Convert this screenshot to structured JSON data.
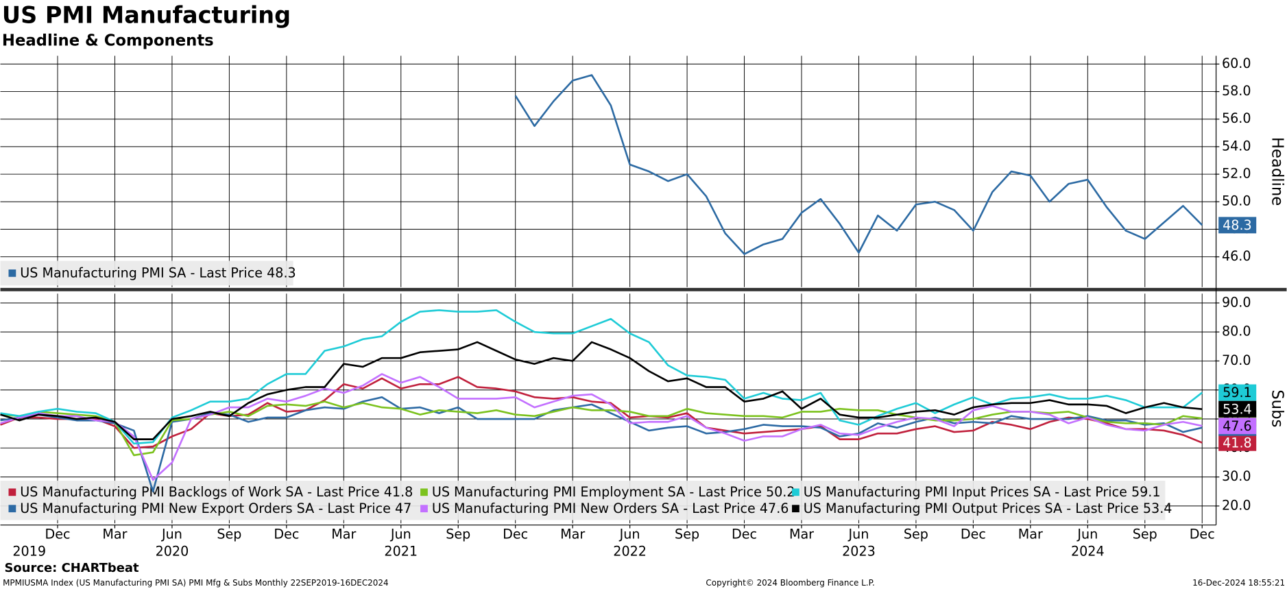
{
  "chart_data": [
    {
      "type": "line",
      "title": "US PMI Manufacturing",
      "subtitle": "Headline & Components",
      "y_label": "Headline",
      "legend_suffix": "- Last Price",
      "x": [
        "2019-09",
        "2019-10",
        "2019-11",
        "2019-12",
        "2020-01",
        "2020-02",
        "2020-03",
        "2020-04",
        "2020-05",
        "2020-06",
        "2020-07",
        "2020-08",
        "2020-09",
        "2020-10",
        "2020-11",
        "2020-12",
        "2021-01",
        "2021-02",
        "2021-03",
        "2021-04",
        "2021-05",
        "2021-06",
        "2021-07",
        "2021-08",
        "2021-09",
        "2021-10",
        "2021-11",
        "2021-12",
        "2022-01",
        "2022-02",
        "2022-03",
        "2022-04",
        "2022-05",
        "2022-06",
        "2022-07",
        "2022-08",
        "2022-09",
        "2022-10",
        "2022-11",
        "2022-12",
        "2023-01",
        "2023-02",
        "2023-03",
        "2023-04",
        "2023-05",
        "2023-06",
        "2023-07",
        "2023-08",
        "2023-09",
        "2023-10",
        "2023-11",
        "2023-12",
        "2024-01",
        "2024-02",
        "2024-03",
        "2024-04",
        "2024-05",
        "2024-06",
        "2024-07",
        "2024-08",
        "2024-09",
        "2024-10",
        "2024-11",
        "2024-12"
      ],
      "ylim": [
        43.8,
        60.6
      ],
      "yticks": [
        {
          "value": 46,
          "label": "46.0"
        },
        {
          "value": 48,
          "label": "48.0"
        },
        {
          "value": 50,
          "label": "50.0"
        },
        {
          "value": 52,
          "label": "52.0"
        },
        {
          "value": 54,
          "label": "54.0"
        },
        {
          "value": 56,
          "label": "56.0"
        },
        {
          "value": 58,
          "label": "58.0"
        },
        {
          "value": 60,
          "label": "60.0"
        }
      ],
      "grid": true,
      "series": [
        {
          "name": "US Manufacturing PMI SA",
          "color": "#2c6aa3",
          "values": [
            null,
            null,
            null,
            null,
            null,
            null,
            null,
            null,
            null,
            null,
            null,
            null,
            null,
            null,
            null,
            null,
            null,
            null,
            null,
            null,
            null,
            null,
            null,
            null,
            null,
            null,
            null,
            57.7,
            55.5,
            57.3,
            58.8,
            59.2,
            57.0,
            52.7,
            52.2,
            51.5,
            52.0,
            50.4,
            47.7,
            46.2,
            46.9,
            47.3,
            49.2,
            50.2,
            48.4,
            46.3,
            49.0,
            47.9,
            49.8,
            50.0,
            49.4,
            47.9,
            50.7,
            52.2,
            51.9,
            50.0,
            51.3,
            51.6,
            49.6,
            47.9,
            47.3,
            48.5,
            49.7,
            48.3
          ]
        }
      ]
    },
    {
      "type": "line",
      "y_label": "Subs",
      "legend_suffix": "- Last Price",
      "x": [
        "2019-09",
        "2019-10",
        "2019-11",
        "2019-12",
        "2020-01",
        "2020-02",
        "2020-03",
        "2020-04",
        "2020-05",
        "2020-06",
        "2020-07",
        "2020-08",
        "2020-09",
        "2020-10",
        "2020-11",
        "2020-12",
        "2021-01",
        "2021-02",
        "2021-03",
        "2021-04",
        "2021-05",
        "2021-06",
        "2021-07",
        "2021-08",
        "2021-09",
        "2021-10",
        "2021-11",
        "2021-12",
        "2022-01",
        "2022-02",
        "2022-03",
        "2022-04",
        "2022-05",
        "2022-06",
        "2022-07",
        "2022-08",
        "2022-09",
        "2022-10",
        "2022-11",
        "2022-12",
        "2023-01",
        "2023-02",
        "2023-03",
        "2023-04",
        "2023-05",
        "2023-06",
        "2023-07",
        "2023-08",
        "2023-09",
        "2023-10",
        "2023-11",
        "2023-12",
        "2024-01",
        "2024-02",
        "2024-03",
        "2024-04",
        "2024-05",
        "2024-06",
        "2024-07",
        "2024-08",
        "2024-09",
        "2024-10",
        "2024-11",
        "2024-12"
      ],
      "ylim": [
        14,
        93.2
      ],
      "yticks": [
        {
          "value": 20,
          "label": "20.0"
        },
        {
          "value": 30,
          "label": "30.0"
        },
        {
          "value": 40,
          "label": "40.0"
        },
        {
          "value": 50,
          "label": "50.0"
        },
        {
          "value": 60,
          "label": "60.0"
        },
        {
          "value": 70,
          "label": "70.0"
        },
        {
          "value": 80,
          "label": "80.0"
        },
        {
          "value": 90,
          "label": "90.0"
        }
      ],
      "grid": true,
      "xticks": [
        {
          "value": "2019-12",
          "label": "Dec"
        },
        {
          "value": "2020-03",
          "label": "Mar"
        },
        {
          "value": "2020-06",
          "label": "Jun"
        },
        {
          "value": "2020-09",
          "label": "Sep"
        },
        {
          "value": "2020-12",
          "label": "Dec"
        },
        {
          "value": "2021-03",
          "label": "Mar"
        },
        {
          "value": "2021-06",
          "label": "Jun"
        },
        {
          "value": "2021-09",
          "label": "Sep"
        },
        {
          "value": "2021-12",
          "label": "Dec"
        },
        {
          "value": "2022-03",
          "label": "Mar"
        },
        {
          "value": "2022-06",
          "label": "Jun"
        },
        {
          "value": "2022-09",
          "label": "Sep"
        },
        {
          "value": "2022-12",
          "label": "Dec"
        },
        {
          "value": "2023-03",
          "label": "Mar"
        },
        {
          "value": "2023-06",
          "label": "Jun"
        },
        {
          "value": "2023-09",
          "label": "Sep"
        },
        {
          "value": "2023-12",
          "label": "Dec"
        },
        {
          "value": "2024-03",
          "label": "Mar"
        },
        {
          "value": "2024-06",
          "label": "Jun"
        },
        {
          "value": "2024-09",
          "label": "Sep"
        },
        {
          "value": "2024-12",
          "label": "Dec"
        }
      ],
      "year_labels": [
        {
          "value": "2019-10",
          "label": "2019"
        },
        {
          "value": "2020-06",
          "label": "2020"
        },
        {
          "value": "2021-06",
          "label": "2021"
        },
        {
          "value": "2022-06",
          "label": "2022"
        },
        {
          "value": "2023-06",
          "label": "2023"
        },
        {
          "value": "2024-06",
          "label": "2024"
        }
      ],
      "series": [
        {
          "name": "US Manufacturing PMI Backlogs of Work SA",
          "color": "#c0203c",
          "values": [
            48,
            50.5,
            50.5,
            50,
            50,
            50,
            47.5,
            40,
            40.5,
            44,
            46.5,
            52,
            51,
            51.5,
            55.5,
            52.5,
            53,
            56.5,
            62,
            60.5,
            64,
            60.5,
            62,
            62,
            64.5,
            61,
            60.5,
            59.5,
            57.5,
            57,
            57.5,
            56,
            55.5,
            50.5,
            51,
            50.5,
            52,
            47,
            46,
            45,
            45.5,
            46,
            46.5,
            47.5,
            43,
            43,
            45,
            45,
            46.5,
            47.5,
            45.5,
            46,
            49,
            48,
            46.5,
            49,
            50.5,
            50,
            48.5,
            46.5,
            46.5,
            46,
            44.5,
            41.8
          ]
        },
        {
          "name": "US Manufacturing PMI New Export Orders SA",
          "color": "#2d6aa4",
          "values": [
            49.5,
            50.5,
            51.5,
            50.5,
            49.5,
            49.5,
            48.5,
            46,
            25,
            49,
            50,
            52,
            51.5,
            49,
            50.5,
            50.5,
            53,
            54,
            53.5,
            56,
            57.5,
            53.5,
            54,
            52,
            54,
            50,
            50,
            50,
            50,
            53,
            54,
            55,
            52,
            49,
            46,
            47,
            47.5,
            45,
            45.5,
            46.5,
            48,
            47.5,
            47.5,
            47,
            44,
            45,
            48.5,
            47,
            49,
            50.5,
            48.5,
            49,
            48.5,
            51,
            50,
            50,
            50,
            51,
            49.5,
            49.5,
            48,
            48.5,
            45.5,
            47.0
          ]
        },
        {
          "name": "US Manufacturing PMI Employment SA",
          "color": "#7cc21e",
          "values": [
            51.5,
            51,
            52.5,
            52,
            51.5,
            51,
            49,
            37.5,
            38.5,
            49.5,
            50,
            51.5,
            52.5,
            51,
            54.5,
            55,
            54.5,
            56,
            54,
            55.5,
            54,
            53.5,
            51.5,
            53,
            52.5,
            52,
            53,
            51.5,
            51,
            52.5,
            54,
            53,
            53,
            52.5,
            51,
            51,
            53.5,
            52,
            51.5,
            51,
            51,
            50.5,
            52.5,
            52.5,
            53.5,
            53,
            53,
            51.5,
            50.5,
            49.5,
            49.5,
            50,
            51.5,
            52.5,
            52.5,
            52,
            52.5,
            50.5,
            49,
            48.5,
            48.5,
            48,
            51,
            50.2
          ]
        },
        {
          "name": "US Manufacturing PMI New Orders SA",
          "color": "#c370ff",
          "values": [
            48.5,
            50.5,
            52,
            51,
            51,
            49.5,
            49,
            44,
            29,
            35,
            50,
            51.5,
            54,
            54,
            57,
            56,
            58,
            60.5,
            59,
            61.5,
            65.5,
            62.5,
            64.5,
            61,
            57,
            57,
            57,
            57.5,
            54,
            56,
            58,
            58.5,
            55,
            48.5,
            49,
            49,
            51,
            47,
            45,
            42.5,
            44,
            44,
            46.5,
            48,
            45,
            44.5,
            47,
            49,
            50.5,
            50,
            47.5,
            53,
            54.5,
            52.5,
            52.5,
            51.5,
            48.5,
            50.5,
            48,
            46.5,
            46,
            48,
            49,
            47.6
          ]
        },
        {
          "name": "US Manufacturing PMI Input Prices SA",
          "color": "#1ecbd6",
          "values": [
            52,
            51,
            52.5,
            53.5,
            52.5,
            52,
            49,
            41.5,
            42,
            50.5,
            53,
            56,
            56,
            57,
            62,
            65.5,
            65.5,
            73.5,
            75,
            77.5,
            78.5,
            83.5,
            87,
            87.5,
            87,
            87,
            87.5,
            83.5,
            80,
            79.5,
            79.5,
            82,
            84.5,
            79.5,
            76.5,
            68.5,
            65,
            64.5,
            63.5,
            57,
            59,
            57,
            56.5,
            59,
            49.5,
            48,
            51,
            53.5,
            55.5,
            52,
            55,
            57.5,
            55,
            57,
            57.5,
            58.5,
            57,
            57,
            58,
            56.5,
            54,
            54,
            54,
            59.1
          ]
        },
        {
          "name": "US Manufacturing PMI Output Prices SA",
          "color": "#000000",
          "values": [
            51.5,
            49.5,
            51.5,
            51,
            50,
            50.5,
            49,
            43,
            43,
            50,
            51,
            52.5,
            51,
            55.5,
            58.5,
            60,
            61,
            61,
            69,
            68,
            71,
            71,
            73,
            73.5,
            74,
            76.5,
            73.5,
            70.5,
            69,
            71,
            70,
            76.5,
            74,
            71,
            66.5,
            63,
            64,
            61,
            61,
            56,
            57,
            59.5,
            53.5,
            57,
            51.5,
            50.5,
            50.5,
            51.5,
            52.5,
            53,
            51.5,
            54,
            55,
            55.5,
            55.5,
            56.5,
            55,
            55,
            54.5,
            52,
            54,
            55.5,
            54,
            53.4
          ]
        }
      ]
    }
  ],
  "footer": {
    "source": "Source: CHARTbeat",
    "ticker": "MPMIUSMA Index (US Manufacturing PMI SA) PMI Mfg & Subs  Monthly 22SEP2019-16DEC2024",
    "copyright": "Copyright© 2024 Bloomberg Finance L.P.",
    "timestamp": "16-Dec-2024 18:55:21"
  }
}
